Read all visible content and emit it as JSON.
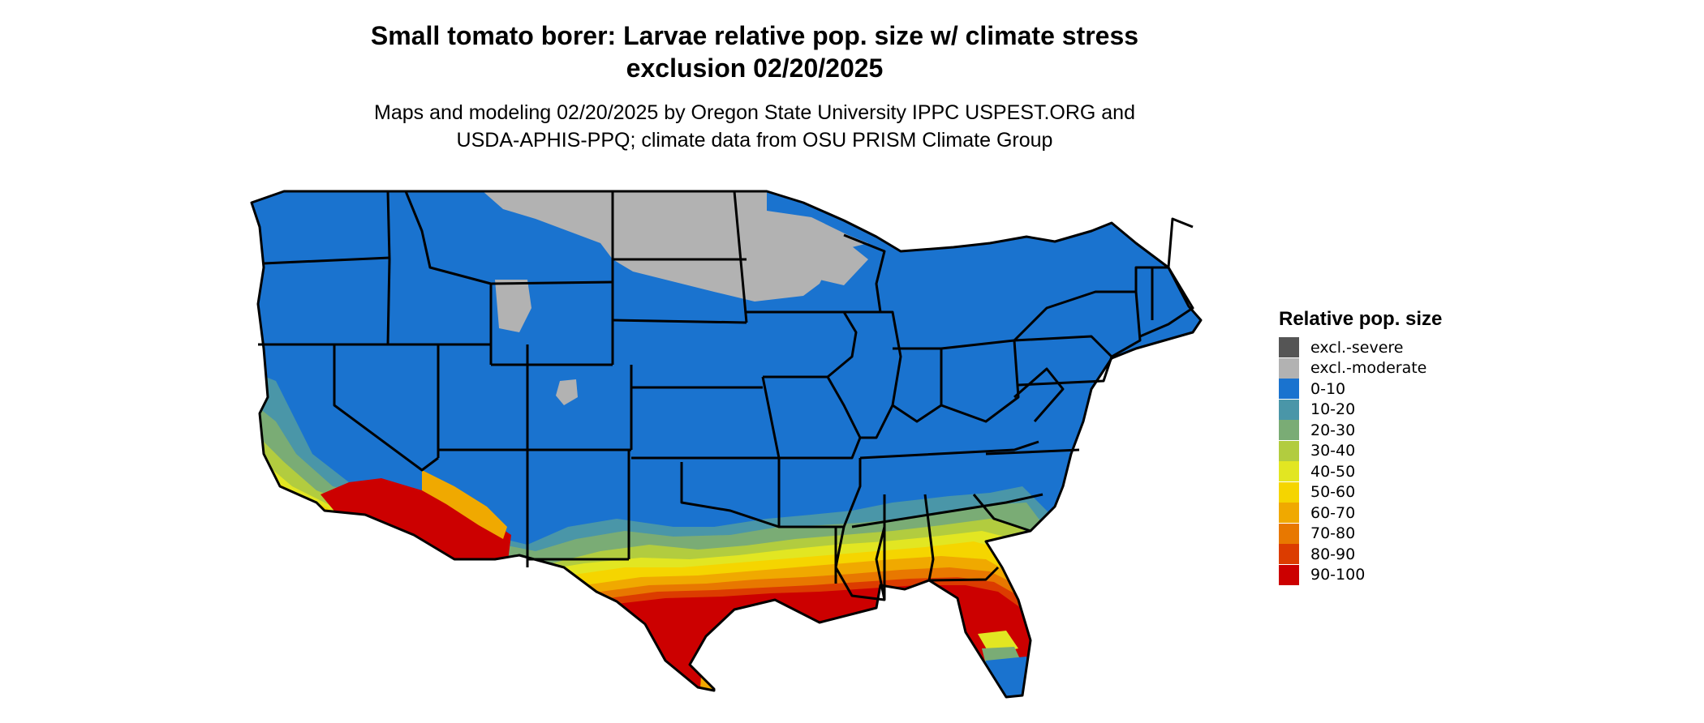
{
  "title_line1": "Small tomato borer: Larvae relative pop. size w/ climate stress",
  "title_line2": "exclusion 02/20/2025",
  "subtitle_line1": "Maps and modeling 02/20/2025 by Oregon State University IPPC USPEST.ORG and",
  "subtitle_line2": "USDA-APHIS-PPQ; climate data from OSU PRISM Climate Group",
  "legend": {
    "title": "Relative pop. size",
    "items": [
      {
        "label": "excl.-severe",
        "color": "#555555"
      },
      {
        "label": "excl.-moderate",
        "color": "#b2b2b2"
      },
      {
        "label": "0-10",
        "color": "#1a73cf"
      },
      {
        "label": "10-20",
        "color": "#4a96a8"
      },
      {
        "label": "20-30",
        "color": "#7aac75"
      },
      {
        "label": "30-40",
        "color": "#b2cc3f"
      },
      {
        "label": "40-50",
        "color": "#e2e622"
      },
      {
        "label": "50-60",
        "color": "#f5d500"
      },
      {
        "label": "60-70",
        "color": "#f0a900"
      },
      {
        "label": "70-80",
        "color": "#e87800"
      },
      {
        "label": "80-90",
        "color": "#dc3c00"
      },
      {
        "label": "90-100",
        "color": "#cc0000"
      }
    ]
  }
}
